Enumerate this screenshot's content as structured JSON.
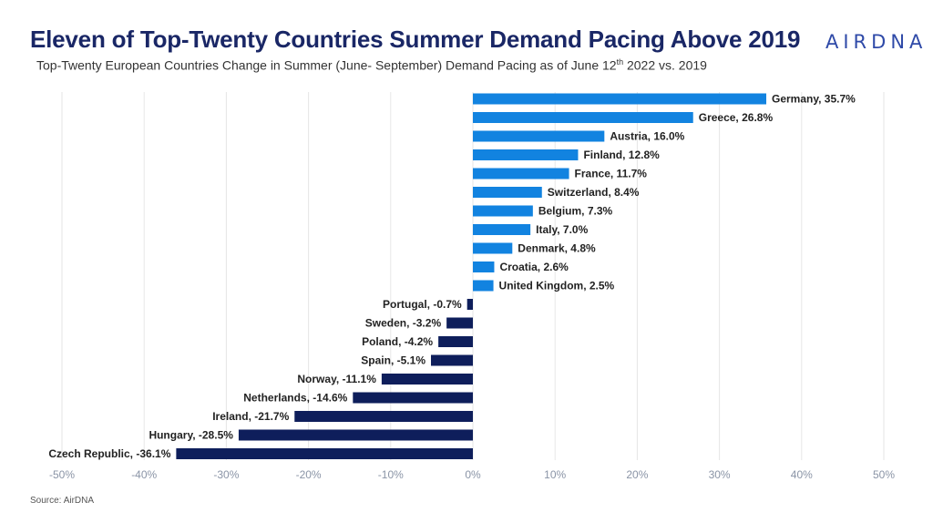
{
  "header": {
    "title": "Eleven of Top-Twenty Countries Summer Demand Pacing Above 2019",
    "subtitle_main": "Top-Twenty European Countries Change in Summer (June- September) Demand Pacing as of June 12",
    "subtitle_sup": "th",
    "subtitle_end": " 2022 vs. 2019",
    "brand": "AIRDNA"
  },
  "footer": {
    "source": "Source: AirDNA"
  },
  "colors": {
    "positive": "#1283e0",
    "negative": "#0e1e5b",
    "label": "#222222",
    "tick": "#8a94a6",
    "grid": "#e6e6e6",
    "title": "#1a2766"
  },
  "chart_data": {
    "type": "bar",
    "orientation": "horizontal",
    "title": "Eleven of Top-Twenty Countries Summer Demand Pacing Above 2019",
    "xlabel": "",
    "ylabel": "",
    "xlim": [
      -50,
      50
    ],
    "xticks": [
      -50,
      -40,
      -30,
      -20,
      -10,
      0,
      10,
      20,
      30,
      40,
      50
    ],
    "xtick_labels": [
      "-50%",
      "-40%",
      "-30%",
      "-20%",
      "-10%",
      "0%",
      "10%",
      "20%",
      "30%",
      "40%",
      "50%"
    ],
    "grid": true,
    "categories": [
      "Germany",
      "Greece",
      "Austria",
      "Finland",
      "France",
      "Switzerland",
      "Belgium",
      "Italy",
      "Denmark",
      "Croatia",
      "United Kingdom",
      "Portugal",
      "Sweden",
      "Poland",
      "Spain",
      "Norway",
      "Netherlands",
      "Ireland",
      "Hungary",
      "Czech Republic"
    ],
    "values": [
      35.7,
      26.8,
      16.0,
      12.8,
      11.7,
      8.4,
      7.3,
      7.0,
      4.8,
      2.6,
      2.5,
      -0.7,
      -3.2,
      -4.2,
      -5.1,
      -11.1,
      -14.6,
      -21.7,
      -28.5,
      -36.1
    ],
    "labels": [
      "Germany, 35.7%",
      "Greece, 26.8%",
      "Austria, 16.0%",
      "Finland, 12.8%",
      "France, 11.7%",
      "Switzerland, 8.4%",
      "Belgium, 7.3%",
      "Italy, 7.0%",
      "Denmark, 4.8%",
      "Croatia, 2.6%",
      "United Kingdom, 2.5%",
      "Portugal, -0.7%",
      "Sweden, -3.2%",
      "Poland, -4.2%",
      "Spain, -5.1%",
      "Norway, -11.1%",
      "Netherlands, -14.6%",
      "Ireland, -21.7%",
      "Hungary, -28.5%",
      "Czech Republic, -36.1%"
    ]
  }
}
